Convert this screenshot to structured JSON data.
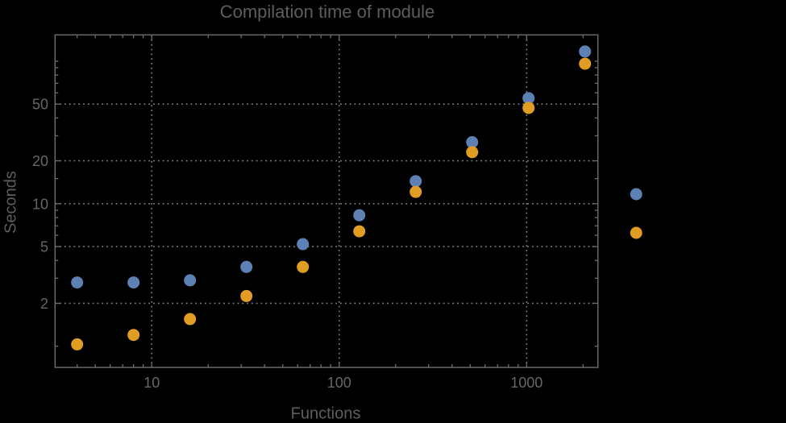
{
  "style": {
    "background": "#000000",
    "frame_color": "#6e6e6e",
    "grid_color": "#7f7f7f",
    "text_color": "#5d5d5d",
    "tick_label_color": "#666666"
  },
  "chart_data": {
    "type": "scatter",
    "title": "Compilation time of module",
    "xlabel": "Functions",
    "ylabel": "Seconds",
    "xscale": "log",
    "yscale": "log",
    "xlim": [
      3.05,
      2400
    ],
    "ylim": [
      0.71,
      153
    ],
    "grid": true,
    "x": [
      4,
      8,
      16,
      32,
      64,
      128,
      256,
      512,
      1024,
      2048
    ],
    "series": [
      {
        "name": "series-1-blue",
        "color": "#5E81B5",
        "values": [
          2.8,
          2.8,
          2.9,
          3.6,
          5.2,
          8.3,
          14.4,
          27,
          55,
          117
        ]
      },
      {
        "name": "series-2-orange",
        "color": "#E19C24",
        "values": [
          1.03,
          1.2,
          1.55,
          2.25,
          3.6,
          6.4,
          12.1,
          23,
          47,
          96
        ]
      }
    ],
    "x_ticks": [
      {
        "value": 10,
        "label": "10"
      },
      {
        "value": 100,
        "label": "100"
      },
      {
        "value": 1000,
        "label": "1000"
      }
    ],
    "y_ticks": [
      {
        "value": 2,
        "label": "2"
      },
      {
        "value": 5,
        "label": "5"
      },
      {
        "value": 10,
        "label": "10"
      },
      {
        "value": 20,
        "label": "20"
      },
      {
        "value": 50,
        "label": "50"
      }
    ],
    "x_minor_ticks": [
      4,
      5,
      6,
      7,
      8,
      9,
      20,
      30,
      40,
      50,
      60,
      70,
      80,
      90,
      200,
      300,
      400,
      500,
      600,
      700,
      800,
      900,
      2000
    ],
    "y_minor_ticks": [
      1,
      3,
      4,
      6,
      7,
      8,
      9,
      15,
      30,
      40,
      60,
      70,
      80,
      90,
      100
    ],
    "legend": {
      "position": "right-outside",
      "labels_visible": false,
      "marker_colors": [
        "#5E81B5",
        "#E19C24"
      ]
    }
  }
}
